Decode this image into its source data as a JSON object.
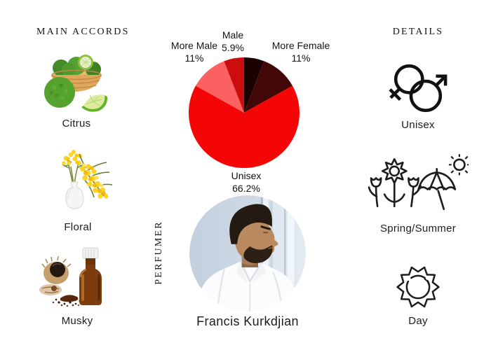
{
  "accords_section": {
    "title": "MAIN ACCORDS",
    "items": [
      {
        "label": "Citrus",
        "image": "bergamot fruits in wicker basket with lime slice"
      },
      {
        "label": "Floral",
        "image": "yellow mimosa flowers in white vase"
      },
      {
        "label": "Musky",
        "image": "musk pod with amber apothecary bottle and powder"
      }
    ]
  },
  "perfumer_section": {
    "title": "PERFUMER",
    "name": "Francis Kurkdjian",
    "photo": "portrait of perfumer in white shirt, profile facing right"
  },
  "details_section": {
    "title": "DETAILS",
    "items": [
      {
        "label": "Unisex",
        "icon": "unisex-gender-icon"
      },
      {
        "label": "Spring/Summer",
        "icon": "spring-summer-icon"
      },
      {
        "label": "Day",
        "icon": "day-sun-icon"
      }
    ]
  },
  "chart_data": {
    "type": "pie",
    "title": "",
    "legend_position": "none",
    "direction": "clockwise",
    "start_angle_deg_from_top": 0,
    "slices": [
      {
        "label": "",
        "pct": "",
        "value": 5.9,
        "color": "#1c0303",
        "estimated": true
      },
      {
        "label": "More Female",
        "pct": "11%",
        "value": 11,
        "color": "#440707"
      },
      {
        "label": "Unisex",
        "pct": "66.2%",
        "value": 66.2,
        "color": "#f40606"
      },
      {
        "label": "More Male",
        "pct": "11%",
        "value": 11,
        "color": "#fc6161"
      },
      {
        "label": "Male",
        "pct": "5.9%",
        "value": 5.9,
        "color": "#cc0d0d"
      }
    ]
  }
}
